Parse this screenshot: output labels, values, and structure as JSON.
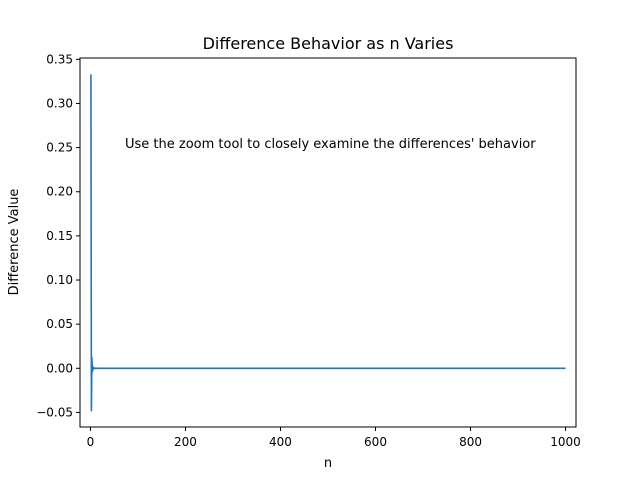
{
  "chart_data": {
    "type": "line",
    "title": "Difference Behavior as n Varies",
    "xlabel": "n",
    "ylabel": "Difference Value",
    "xlim": [
      -22,
      1022
    ],
    "ylim": [
      -0.0665,
      0.3515
    ],
    "xticks": [
      0,
      200,
      400,
      600,
      800,
      1000
    ],
    "xtick_labels": [
      "0",
      "200",
      "400",
      "600",
      "800",
      "1000"
    ],
    "yticks": [
      -0.05,
      0.0,
      0.05,
      0.1,
      0.15,
      0.2,
      0.25,
      0.3,
      0.35
    ],
    "ytick_labels": [
      "−0.05",
      "0.00",
      "0.05",
      "0.10",
      "0.15",
      "0.20",
      "0.25",
      "0.30",
      "0.35"
    ],
    "grid": false,
    "legend": null,
    "annotation": "Use the zoom tool to closely examine the differences' behavior",
    "series": [
      {
        "color": "#1f77b4",
        "x": [
          1,
          2,
          3,
          4,
          5,
          6,
          7,
          8,
          10,
          15,
          20,
          50,
          100,
          200,
          400,
          600,
          800,
          1000
        ],
        "y": [
          0.333,
          -0.048,
          0.012,
          -0.004,
          0.002,
          -0.001,
          0.0005,
          -0.0003,
          0.0001,
          0.0,
          0.0,
          0.0,
          0.0,
          0.0,
          0.0,
          0.0,
          0.0,
          0.0
        ]
      }
    ]
  }
}
